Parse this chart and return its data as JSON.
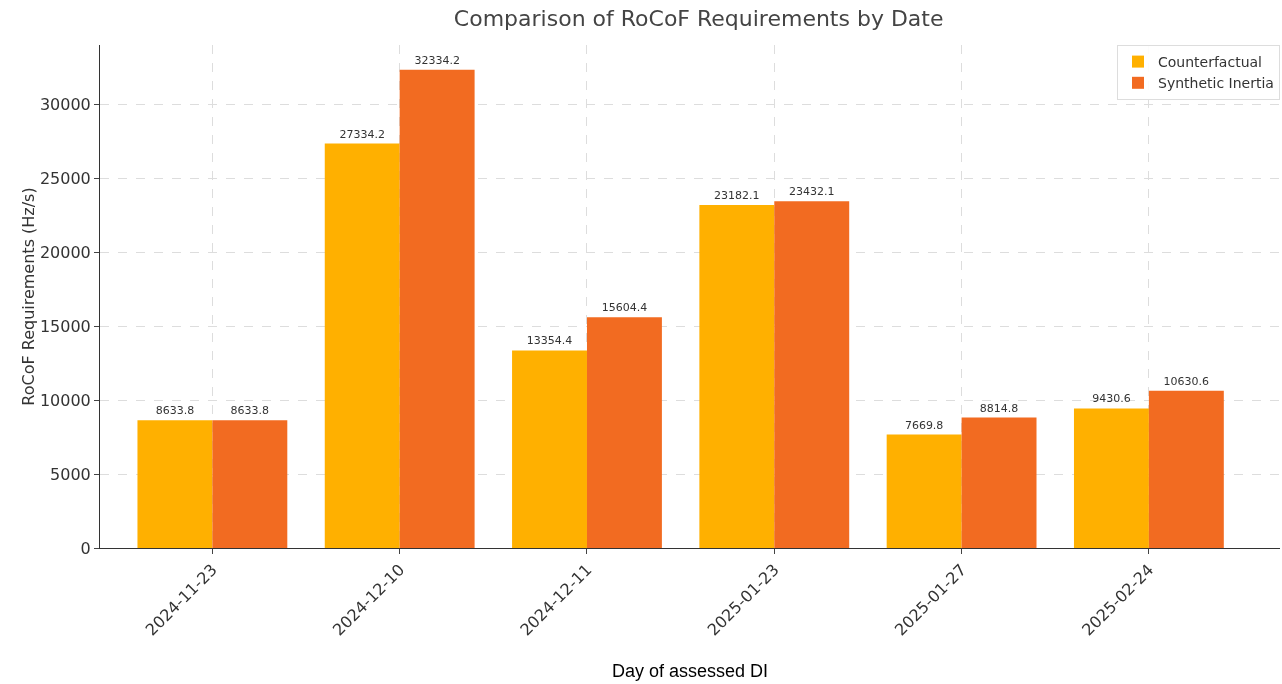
{
  "chart_data": {
    "type": "bar",
    "title": "Comparison of RoCoF Requirements by Date",
    "xlabel": "Day of assessed DI",
    "ylabel": "RoCoF Requirements (Hz/s)",
    "categories": [
      "2024-11-23",
      "2024-12-10",
      "2024-12-11",
      "2025-01-23",
      "2025-01-27",
      "2025-02-24"
    ],
    "series": [
      {
        "name": "Counterfactual",
        "color": "#ffb000",
        "values": [
          8633.8,
          27334.2,
          13354.4,
          23182.1,
          7669.8,
          9430.6
        ]
      },
      {
        "name": "Synthetic Inertia",
        "color": "#f26b21",
        "values": [
          8633.8,
          32334.2,
          15604.4,
          23432.1,
          8814.8,
          10630.6
        ]
      }
    ],
    "ylim": [
      0,
      34000
    ],
    "yticks": [
      0,
      5000,
      10000,
      15000,
      20000,
      25000,
      30000
    ],
    "grid": true,
    "legend": "top right",
    "data_labels": true
  }
}
